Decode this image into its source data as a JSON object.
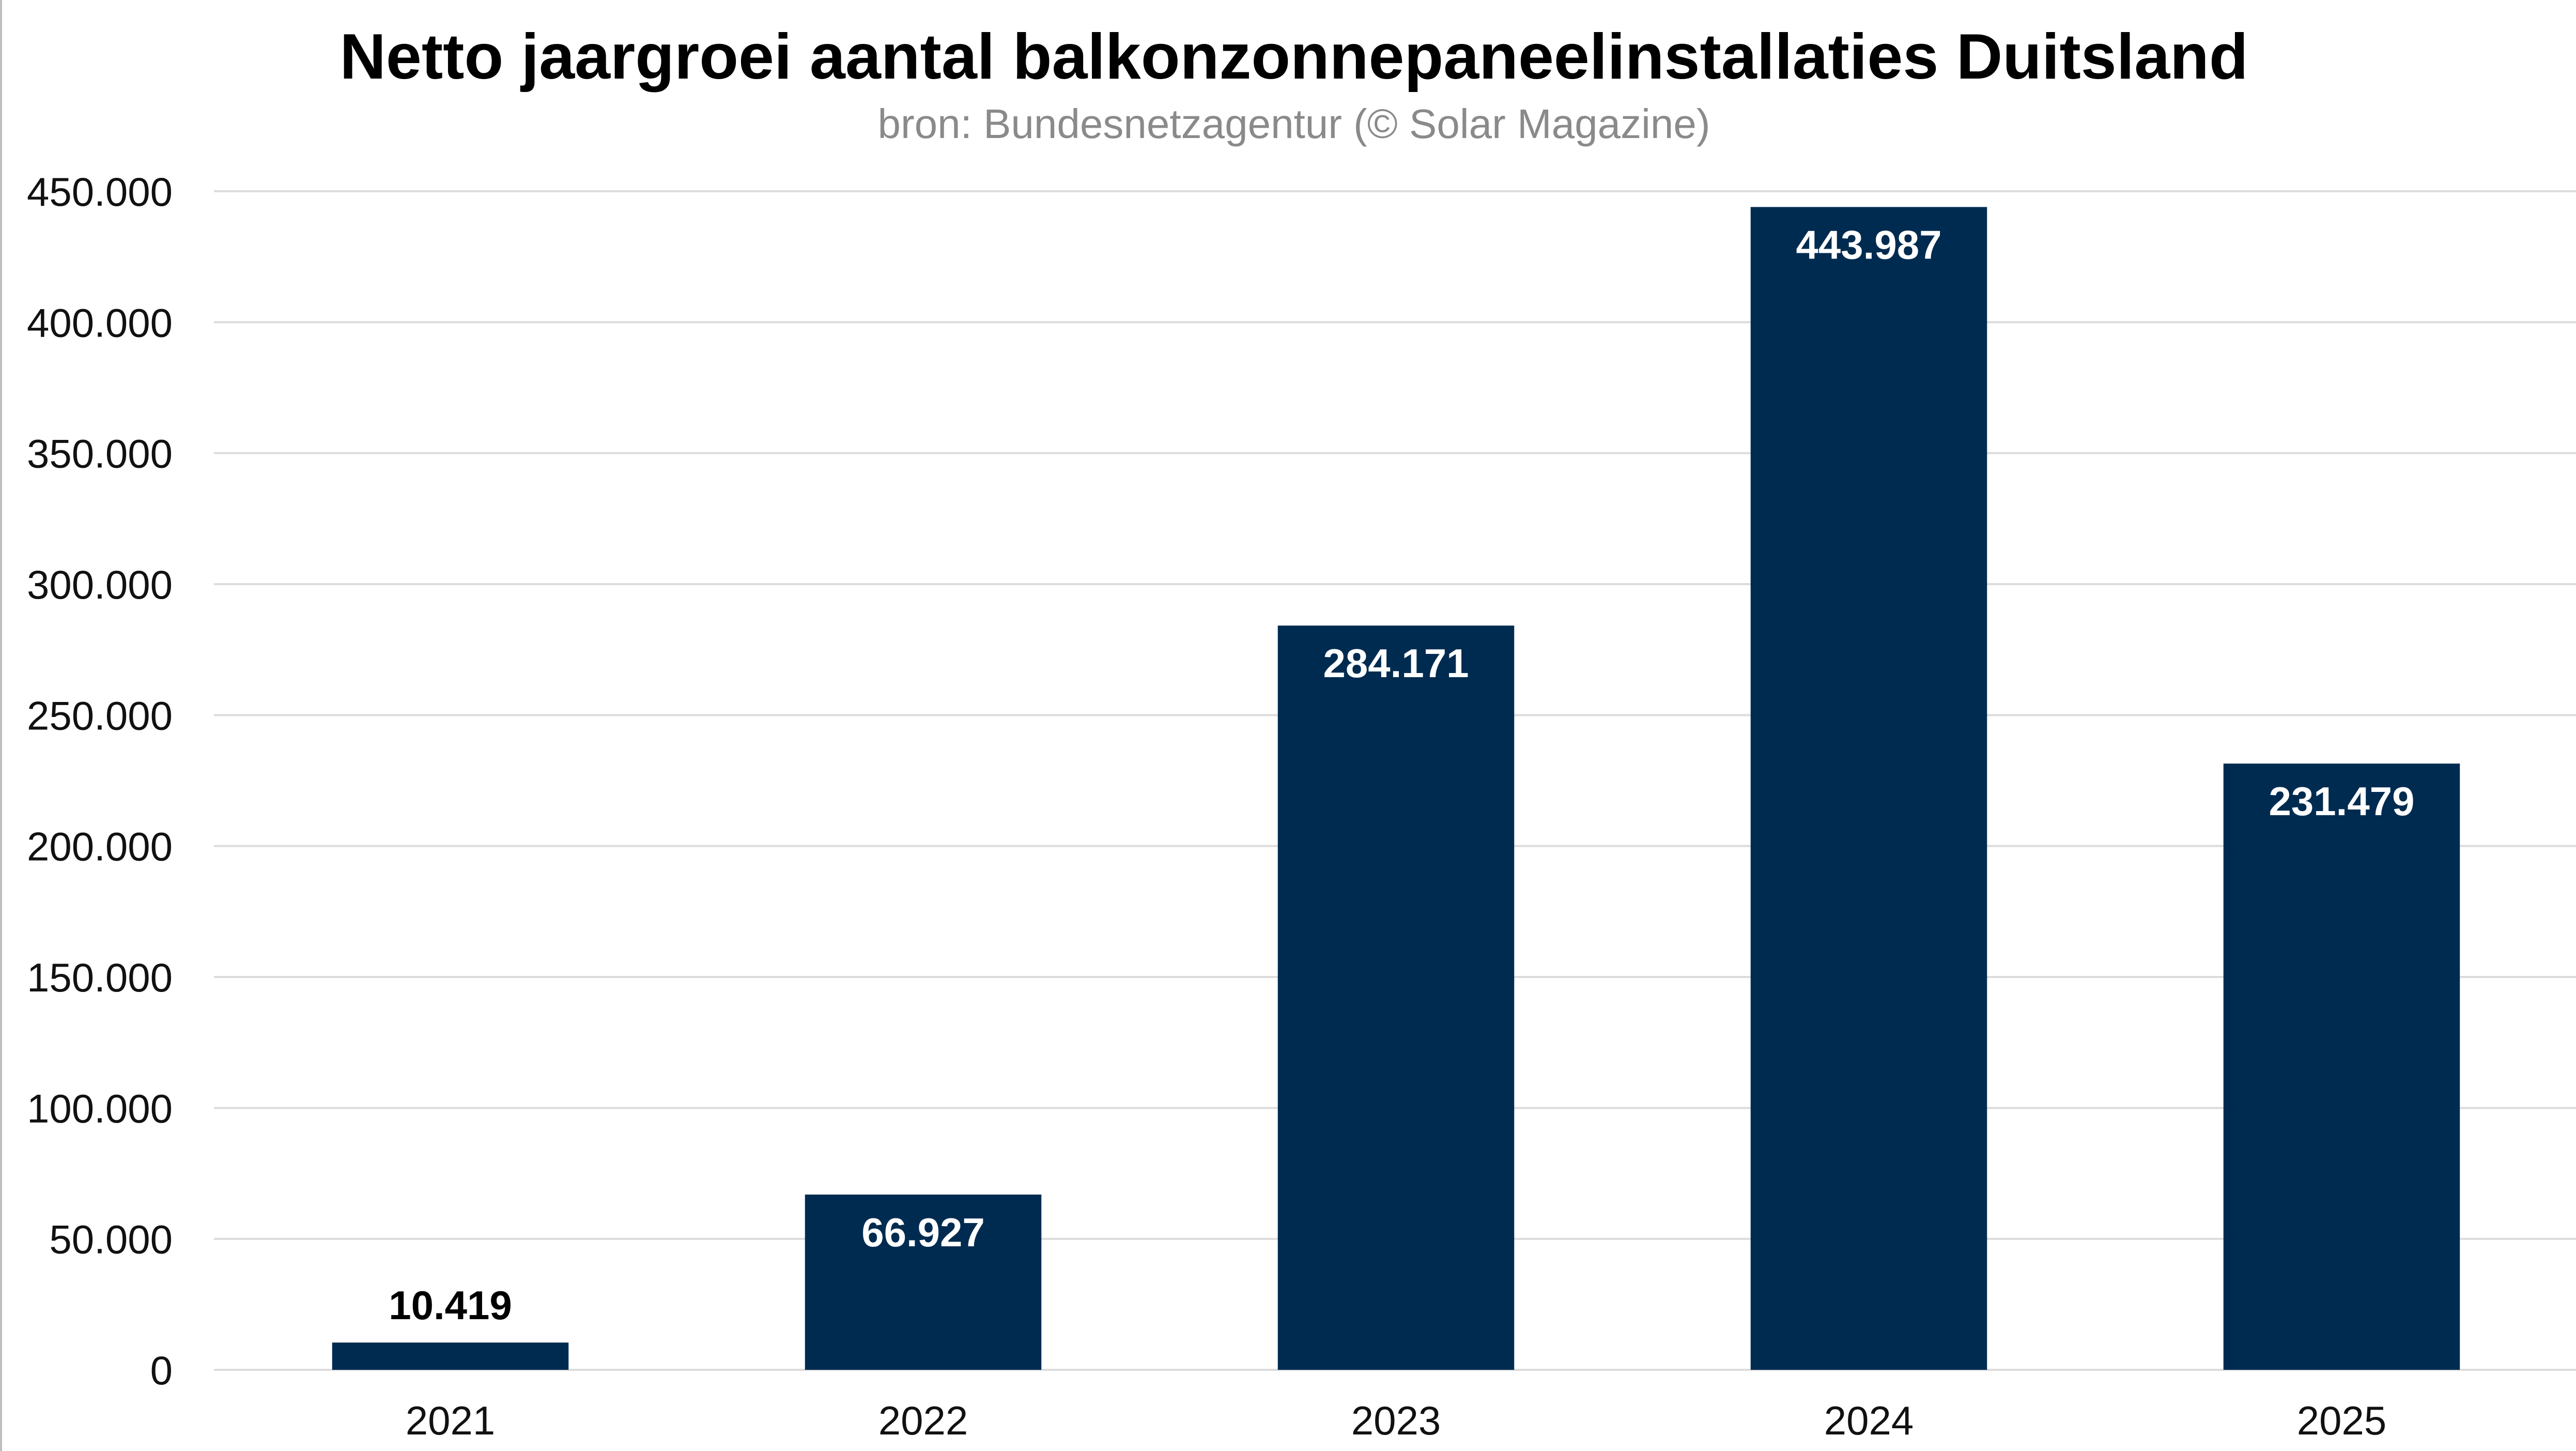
{
  "chart_data": {
    "type": "bar",
    "title": "Netto jaargroei aantal balkonzonnepaneelinstallaties Duitsland",
    "subtitle": "bron: Bundesnetzagentur (© Solar Magazine)",
    "categories": [
      "2021",
      "2022",
      "2023",
      "2024",
      "2025"
    ],
    "values": [
      10419,
      66927,
      284171,
      443987,
      231479
    ],
    "value_labels": [
      "10.419",
      "66.927",
      "284.171",
      "443.987",
      "231.479"
    ],
    "xlabel": "",
    "ylabel": "",
    "ylim": [
      0,
      450000
    ],
    "yticks": [
      0,
      50000,
      100000,
      150000,
      200000,
      250000,
      300000,
      350000,
      400000,
      450000
    ],
    "ytick_labels": [
      "0",
      "50.000",
      "100.000",
      "150.000",
      "200.000",
      "250.000",
      "300.000",
      "350.000",
      "400.000",
      "450.000"
    ],
    "grid": true,
    "legend": "none",
    "colors": {
      "bar": "#002b50",
      "label_inside": "#ffffff",
      "label_outside": "#000000",
      "gridline": "#dcdcdc",
      "subtitle": "#8a8a8a"
    }
  }
}
